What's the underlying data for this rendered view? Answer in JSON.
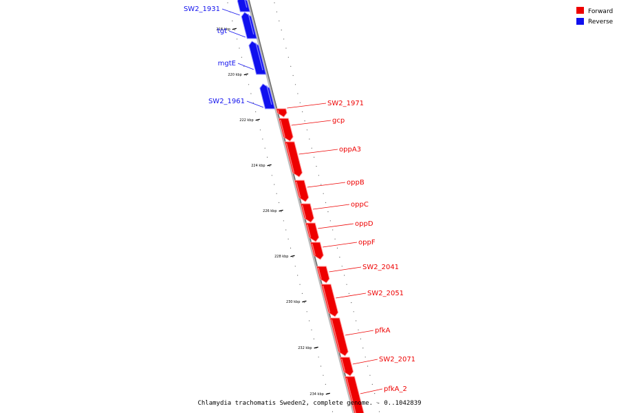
{
  "legend": {
    "forward": {
      "label": "Forward",
      "color": "#ee0000"
    },
    "reverse": {
      "label": "Reverse",
      "color": "#1010ee"
    }
  },
  "caption": "Chlamydia trachomatis Sweden2, complete genome. - 0..1042839",
  "axis": {
    "ticks": [
      "218 kbp",
      "220 kbp",
      "222 kbp",
      "224 kbp",
      "226 kbp",
      "228 kbp",
      "230 kbp",
      "232 kbp",
      "234 kbp"
    ]
  },
  "genes": [
    {
      "name": "SW2_1931",
      "strand": "reverse"
    },
    {
      "name": "tgt",
      "strand": "reverse"
    },
    {
      "name": "mgtE",
      "strand": "reverse"
    },
    {
      "name": "SW2_1961",
      "strand": "reverse"
    },
    {
      "name": "SW2_1971",
      "strand": "forward"
    },
    {
      "name": "gcp",
      "strand": "forward"
    },
    {
      "name": "oppA3",
      "strand": "forward"
    },
    {
      "name": "oppB",
      "strand": "forward"
    },
    {
      "name": "oppC",
      "strand": "forward"
    },
    {
      "name": "oppD",
      "strand": "forward"
    },
    {
      "name": "oppF",
      "strand": "forward"
    },
    {
      "name": "SW2_2041",
      "strand": "forward"
    },
    {
      "name": "SW2_2051",
      "strand": "forward"
    },
    {
      "name": "pfkA",
      "strand": "forward"
    },
    {
      "name": "SW2_2071",
      "strand": "forward"
    },
    {
      "name": "pfkA_2",
      "strand": "forward"
    }
  ]
}
